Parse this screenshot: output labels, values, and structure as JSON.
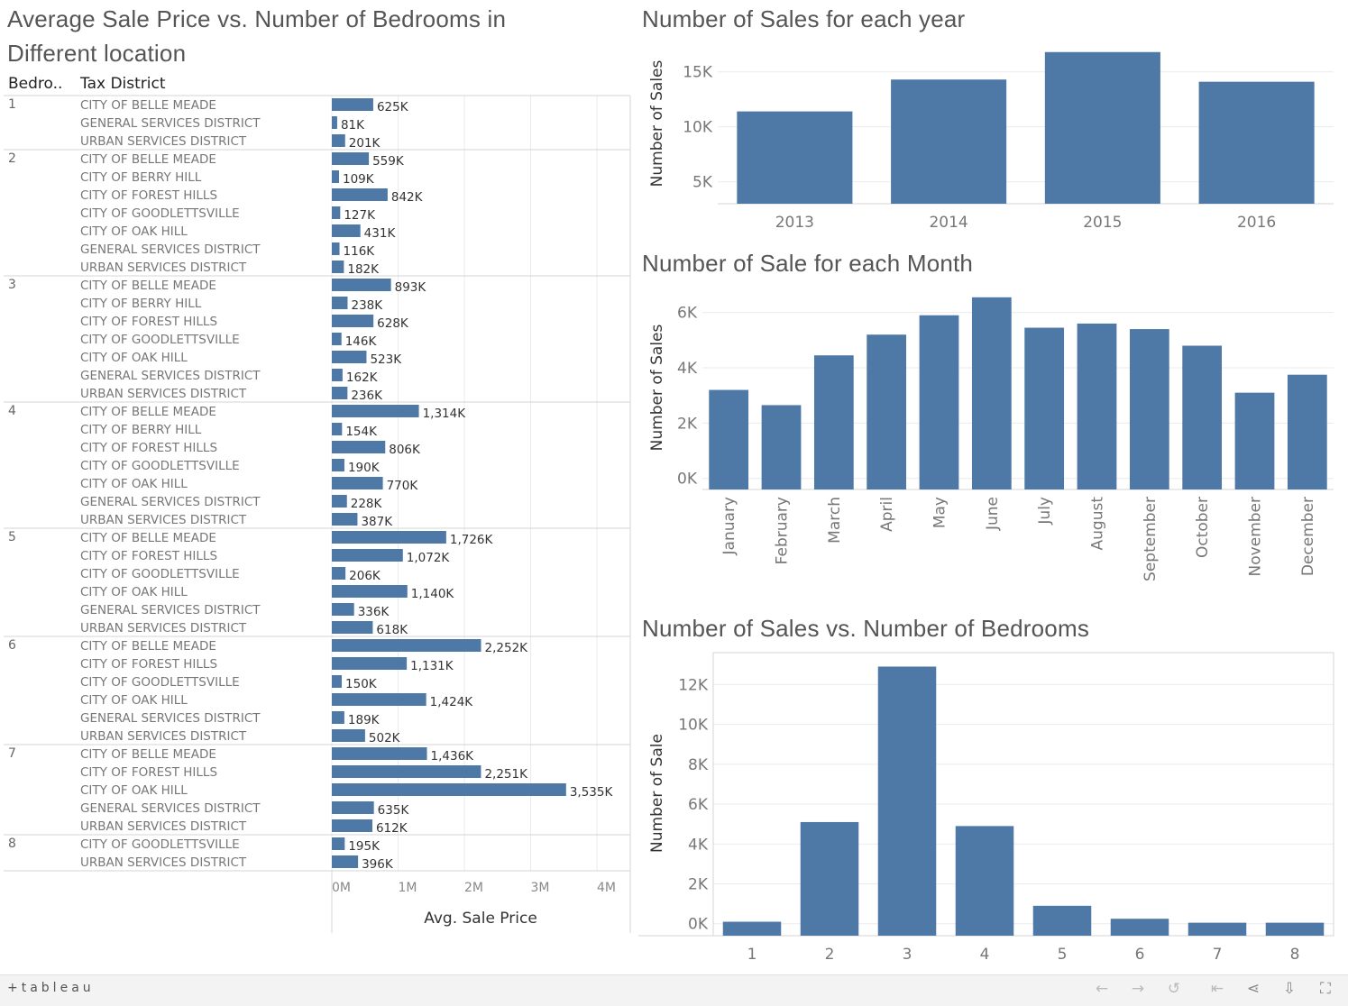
{
  "titles": {
    "price_chart": "Average Sale Price vs. Number of Bedrooms in Different location",
    "year_chart": "Number of Sales for each year",
    "month_chart": "Number of Sale for each Month",
    "bedroom_chart": "Number of Sales vs. Number of Bedrooms"
  },
  "footer": {
    "logo_text": "+tableau",
    "icons": [
      "undo-icon",
      "redo-icon",
      "revert-icon",
      "first-icon",
      "share-icon",
      "download-icon",
      "fullscreen-icon"
    ]
  },
  "colors": {
    "bar": "#4e79a7",
    "grid": "#ebebeb",
    "divider": "#d4d4d4"
  },
  "chart_data": [
    {
      "type": "bar",
      "orientation": "horizontal",
      "title": "Average Sale Price vs. Number of Bedrooms in Different location",
      "columns": [
        "Bedro..",
        "Tax District"
      ],
      "xlabel": "Avg. Sale Price",
      "xticks": [
        "0M",
        "1M",
        "2M",
        "3M",
        "4M"
      ],
      "xlim": [
        0,
        4400000
      ],
      "grid": true,
      "groups": [
        {
          "bedrooms": "1",
          "rows": [
            {
              "district": "CITY OF BELLE MEADE",
              "value": 625000,
              "label": "625K"
            },
            {
              "district": "GENERAL SERVICES DISTRICT",
              "value": 81000,
              "label": "81K"
            },
            {
              "district": "URBAN SERVICES DISTRICT",
              "value": 201000,
              "label": "201K"
            }
          ]
        },
        {
          "bedrooms": "2",
          "rows": [
            {
              "district": "CITY OF BELLE MEADE",
              "value": 559000,
              "label": "559K"
            },
            {
              "district": "CITY OF BERRY HILL",
              "value": 109000,
              "label": "109K"
            },
            {
              "district": "CITY OF FOREST HILLS",
              "value": 842000,
              "label": "842K"
            },
            {
              "district": "CITY OF GOODLETTSVILLE",
              "value": 127000,
              "label": "127K"
            },
            {
              "district": "CITY OF OAK HILL",
              "value": 431000,
              "label": "431K"
            },
            {
              "district": "GENERAL SERVICES DISTRICT",
              "value": 116000,
              "label": "116K"
            },
            {
              "district": "URBAN SERVICES DISTRICT",
              "value": 182000,
              "label": "182K"
            }
          ]
        },
        {
          "bedrooms": "3",
          "rows": [
            {
              "district": "CITY OF BELLE MEADE",
              "value": 893000,
              "label": "893K"
            },
            {
              "district": "CITY OF BERRY HILL",
              "value": 238000,
              "label": "238K"
            },
            {
              "district": "CITY OF FOREST HILLS",
              "value": 628000,
              "label": "628K"
            },
            {
              "district": "CITY OF GOODLETTSVILLE",
              "value": 146000,
              "label": "146K"
            },
            {
              "district": "CITY OF OAK HILL",
              "value": 523000,
              "label": "523K"
            },
            {
              "district": "GENERAL SERVICES DISTRICT",
              "value": 162000,
              "label": "162K"
            },
            {
              "district": "URBAN SERVICES DISTRICT",
              "value": 236000,
              "label": "236K"
            }
          ]
        },
        {
          "bedrooms": "4",
          "rows": [
            {
              "district": "CITY OF BELLE MEADE",
              "value": 1314000,
              "label": "1,314K"
            },
            {
              "district": "CITY OF BERRY HILL",
              "value": 154000,
              "label": "154K"
            },
            {
              "district": "CITY OF FOREST HILLS",
              "value": 806000,
              "label": "806K"
            },
            {
              "district": "CITY OF GOODLETTSVILLE",
              "value": 190000,
              "label": "190K"
            },
            {
              "district": "CITY OF OAK HILL",
              "value": 770000,
              "label": "770K"
            },
            {
              "district": "GENERAL SERVICES DISTRICT",
              "value": 228000,
              "label": "228K"
            },
            {
              "district": "URBAN SERVICES DISTRICT",
              "value": 387000,
              "label": "387K"
            }
          ]
        },
        {
          "bedrooms": "5",
          "rows": [
            {
              "district": "CITY OF BELLE MEADE",
              "value": 1726000,
              "label": "1,726K"
            },
            {
              "district": "CITY OF FOREST HILLS",
              "value": 1072000,
              "label": "1,072K"
            },
            {
              "district": "CITY OF GOODLETTSVILLE",
              "value": 206000,
              "label": "206K"
            },
            {
              "district": "CITY OF OAK HILL",
              "value": 1140000,
              "label": "1,140K"
            },
            {
              "district": "GENERAL SERVICES DISTRICT",
              "value": 336000,
              "label": "336K"
            },
            {
              "district": "URBAN SERVICES DISTRICT",
              "value": 618000,
              "label": "618K"
            }
          ]
        },
        {
          "bedrooms": "6",
          "rows": [
            {
              "district": "CITY OF BELLE MEADE",
              "value": 2252000,
              "label": "2,252K"
            },
            {
              "district": "CITY OF FOREST HILLS",
              "value": 1131000,
              "label": "1,131K"
            },
            {
              "district": "CITY OF GOODLETTSVILLE",
              "value": 150000,
              "label": "150K"
            },
            {
              "district": "CITY OF OAK HILL",
              "value": 1424000,
              "label": "1,424K"
            },
            {
              "district": "GENERAL SERVICES DISTRICT",
              "value": 189000,
              "label": "189K"
            },
            {
              "district": "URBAN SERVICES DISTRICT",
              "value": 502000,
              "label": "502K"
            }
          ]
        },
        {
          "bedrooms": "7",
          "rows": [
            {
              "district": "CITY OF BELLE MEADE",
              "value": 1436000,
              "label": "1,436K"
            },
            {
              "district": "CITY OF FOREST HILLS",
              "value": 2251000,
              "label": "2,251K"
            },
            {
              "district": "CITY OF OAK HILL",
              "value": 3535000,
              "label": "3,535K"
            },
            {
              "district": "GENERAL SERVICES DISTRICT",
              "value": 635000,
              "label": "635K"
            },
            {
              "district": "URBAN SERVICES DISTRICT",
              "value": 612000,
              "label": "612K"
            }
          ]
        },
        {
          "bedrooms": "8",
          "rows": [
            {
              "district": "CITY OF GOODLETTSVILLE",
              "value": 195000,
              "label": "195K"
            },
            {
              "district": "URBAN SERVICES DISTRICT",
              "value": 396000,
              "label": "396K"
            }
          ]
        }
      ]
    },
    {
      "type": "bar",
      "title": "Number of Sales for each year",
      "categories": [
        "2013",
        "2014",
        "2015",
        "2016"
      ],
      "values": [
        11400,
        14300,
        16800,
        14100
      ],
      "ylabel": "Number of Sales",
      "yticks": [
        {
          "value": 5000,
          "label": "5K"
        },
        {
          "value": 10000,
          "label": "10K"
        },
        {
          "value": 15000,
          "label": "15K"
        }
      ],
      "ylim": [
        3000,
        17600
      ],
      "grid": true
    },
    {
      "type": "bar",
      "title": "Number of Sale for each Month",
      "categories": [
        "January",
        "February",
        "March",
        "April",
        "May",
        "June",
        "July",
        "August",
        "September",
        "October",
        "November",
        "December"
      ],
      "values": [
        3200,
        2650,
        4450,
        5200,
        5900,
        6550,
        5450,
        5600,
        5400,
        4800,
        3100,
        3750
      ],
      "ylabel": "Number of Sales",
      "yticks": [
        {
          "value": 0,
          "label": "0K"
        },
        {
          "value": 2000,
          "label": "2K"
        },
        {
          "value": 4000,
          "label": "4K"
        },
        {
          "value": 6000,
          "label": "6K"
        }
      ],
      "ylim": [
        -400,
        7000
      ],
      "grid": true
    },
    {
      "type": "bar",
      "title": "Number of Sales vs. Number of Bedrooms",
      "categories": [
        "1",
        "2",
        "3",
        "4",
        "5",
        "6",
        "7",
        "8"
      ],
      "values": [
        100,
        5100,
        12900,
        4900,
        900,
        250,
        50,
        50
      ],
      "ylabel": "Number of Sale",
      "yticks": [
        {
          "value": 0,
          "label": "0K"
        },
        {
          "value": 2000,
          "label": "2K"
        },
        {
          "value": 4000,
          "label": "4K"
        },
        {
          "value": 6000,
          "label": "6K"
        },
        {
          "value": 8000,
          "label": "8K"
        },
        {
          "value": 10000,
          "label": "10K"
        },
        {
          "value": 12000,
          "label": "12K"
        }
      ],
      "ylim": [
        -600,
        13600
      ],
      "grid": true
    }
  ]
}
